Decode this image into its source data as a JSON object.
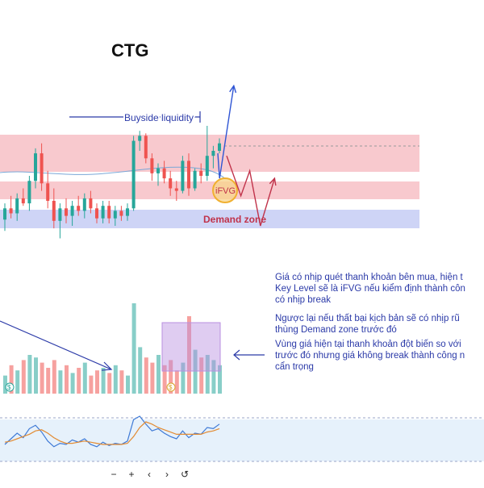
{
  "title": "CTG",
  "annotations": {
    "buyside_liquidity": "Buyside liquidity",
    "demand_zone": "Demand zone",
    "ifvg": "iFVG"
  },
  "notes": [
    "Giá có nhịp quét thanh khoản bên mua, hiện t\nKey Level sẽ là iFVG nếu kiểm định thành côn\ncó nhịp break",
    "Ngược lại nếu thất bại kịch bản sẽ có nhịp rũ\nthùng Demand zone trước đó",
    "Vùng giá hiện tại thanh khoản đột biến so với\ntrước đó nhưng giá không break thành công n\ncẩn trọng"
  ],
  "volume_markers": [
    "$",
    "$"
  ],
  "toolbar": {
    "zoom_out": "−",
    "zoom_in": "+",
    "scroll_left": "‹",
    "scroll_right": "›",
    "reset": "↺"
  },
  "colors": {
    "up": "#26a69a",
    "down": "#ef5350",
    "zone_red": "#f5b7bd",
    "zone_blue": "#c5cdf5",
    "annotation": "#2b3aa8",
    "scenario_up": "#2f55d4",
    "scenario_down": "#c0324a",
    "ifvg_circle": "#f0b030",
    "volume_box": "#b98fe0"
  },
  "chart_data": {
    "type": "candlestick",
    "title": "CTG",
    "candles": [
      {
        "o": 5,
        "h": 18,
        "l": -4,
        "c": 14
      },
      {
        "o": 14,
        "h": 24,
        "l": 6,
        "c": 10
      },
      {
        "o": 10,
        "h": 26,
        "l": 4,
        "c": 22
      },
      {
        "o": 22,
        "h": 30,
        "l": 16,
        "c": 18
      },
      {
        "o": 18,
        "h": 40,
        "l": 12,
        "c": 36
      },
      {
        "o": 36,
        "h": 62,
        "l": 30,
        "c": 58
      },
      {
        "o": 58,
        "h": 66,
        "l": 28,
        "c": 34
      },
      {
        "o": 34,
        "h": 44,
        "l": 14,
        "c": 20
      },
      {
        "o": 20,
        "h": 30,
        "l": -2,
        "c": 4
      },
      {
        "o": 4,
        "h": 18,
        "l": -10,
        "c": 14
      },
      {
        "o": 14,
        "h": 22,
        "l": 2,
        "c": 8
      },
      {
        "o": 8,
        "h": 20,
        "l": 0,
        "c": 16
      },
      {
        "o": 16,
        "h": 24,
        "l": 8,
        "c": 12
      },
      {
        "o": 12,
        "h": 26,
        "l": 6,
        "c": 22
      },
      {
        "o": 22,
        "h": 28,
        "l": 10,
        "c": 14
      },
      {
        "o": 14,
        "h": 18,
        "l": 2,
        "c": 6
      },
      {
        "o": 6,
        "h": 20,
        "l": 2,
        "c": 16
      },
      {
        "o": 16,
        "h": 20,
        "l": 2,
        "c": 6
      },
      {
        "o": 6,
        "h": 16,
        "l": 0,
        "c": 12
      },
      {
        "o": 12,
        "h": 16,
        "l": 4,
        "c": 8
      },
      {
        "o": 8,
        "h": 18,
        "l": 4,
        "c": 14
      },
      {
        "o": 14,
        "h": 72,
        "l": 12,
        "c": 68
      },
      {
        "o": 68,
        "h": 76,
        "l": 60,
        "c": 72
      },
      {
        "o": 72,
        "h": 74,
        "l": 50,
        "c": 54
      },
      {
        "o": 54,
        "h": 58,
        "l": 36,
        "c": 42
      },
      {
        "o": 42,
        "h": 50,
        "l": 32,
        "c": 46
      },
      {
        "o": 46,
        "h": 52,
        "l": 34,
        "c": 38
      },
      {
        "o": 38,
        "h": 44,
        "l": 24,
        "c": 30
      },
      {
        "o": 30,
        "h": 36,
        "l": 20,
        "c": 28
      },
      {
        "o": 28,
        "h": 56,
        "l": 26,
        "c": 52
      },
      {
        "o": 52,
        "h": 58,
        "l": 24,
        "c": 30
      },
      {
        "o": 30,
        "h": 46,
        "l": 28,
        "c": 44
      },
      {
        "o": 44,
        "h": 50,
        "l": 34,
        "c": 40
      },
      {
        "o": 40,
        "h": 80,
        "l": 36,
        "c": 56
      },
      {
        "o": 56,
        "h": 64,
        "l": 46,
        "c": 60
      },
      {
        "o": 60,
        "h": 70,
        "l": 58,
        "c": 66
      }
    ],
    "volume": [
      14,
      22,
      18,
      26,
      30,
      28,
      24,
      20,
      26,
      18,
      22,
      16,
      20,
      24,
      14,
      18,
      20,
      16,
      22,
      18,
      14,
      70,
      36,
      28,
      24,
      30,
      22,
      26,
      18,
      24,
      60,
      34,
      28,
      30,
      26,
      22
    ],
    "rsi": [
      30,
      40,
      50,
      42,
      58,
      64,
      52,
      36,
      26,
      32,
      30,
      38,
      34,
      40,
      30,
      26,
      34,
      28,
      32,
      30,
      36,
      74,
      80,
      66,
      54,
      58,
      50,
      44,
      40,
      54,
      42,
      50,
      48,
      60,
      58,
      66
    ],
    "rsi_ma": [
      34,
      36,
      40,
      44,
      48,
      54,
      56,
      50,
      42,
      36,
      32,
      32,
      34,
      36,
      34,
      32,
      30,
      30,
      30,
      30,
      32,
      44,
      60,
      70,
      66,
      60,
      56,
      52,
      48,
      48,
      48,
      48,
      48,
      52,
      54,
      58
    ],
    "scenario_up_path": [
      [
        62,
        38
      ],
      [
        78,
        112
      ]
    ],
    "scenario_down_path": [
      [
        70,
        56
      ],
      [
        86,
        24
      ],
      [
        96,
        44
      ],
      [
        108,
        0
      ],
      [
        124,
        38
      ]
    ]
  }
}
